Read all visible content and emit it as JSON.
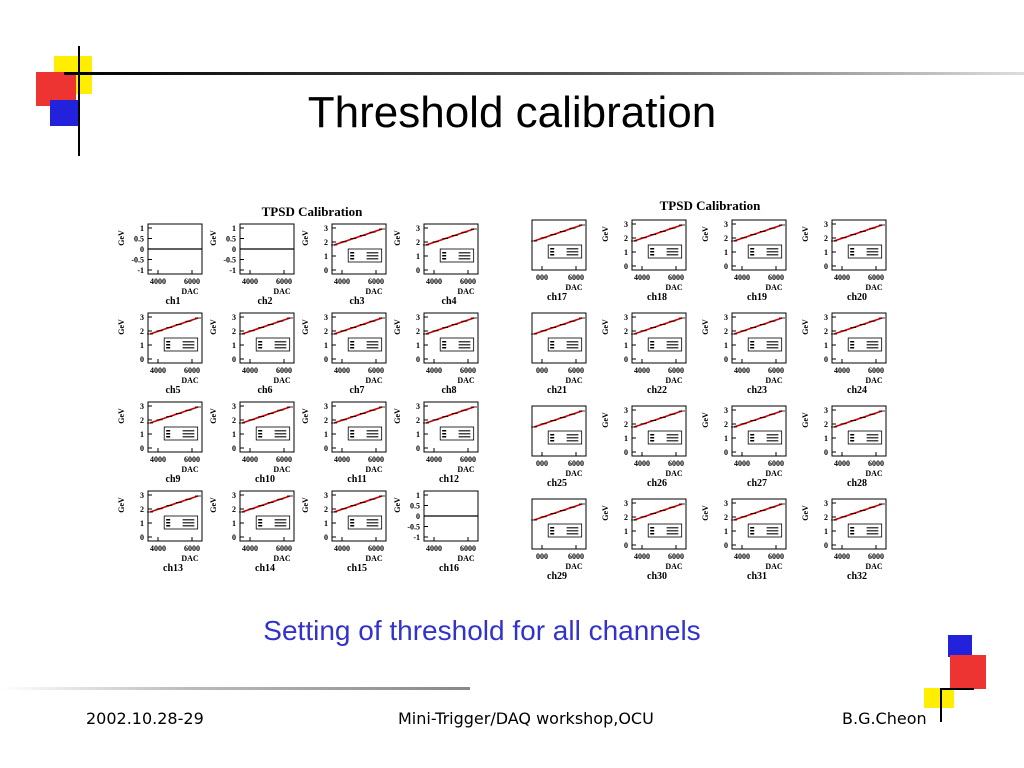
{
  "title": "Threshold calibration",
  "subtitle": "Setting of threshold for all channels",
  "footer": {
    "date": "2002.10.28-29",
    "event": "Mini-Trigger/DAQ workshop,OCU",
    "author": "B.G.Cheon"
  },
  "colors": {
    "line": "#cc0000",
    "subtitle": "#3333cc",
    "deco_red": "#ee3333",
    "deco_yellow": "#ffee00",
    "deco_blue": "#2222dd"
  },
  "chart_data": [
    {
      "type": "line",
      "title": "TPSD Calibration",
      "xlabel": "DAC",
      "ylabel": "GeV",
      "xticks": [
        "4000",
        "6000"
      ],
      "channels": [
        {
          "name": "ch1",
          "flat": true,
          "yticks": [
            "1",
            "0.5",
            "0",
            "-0.5",
            "-1"
          ]
        },
        {
          "name": "ch2",
          "flat": true,
          "yticks": [
            "1",
            "0.5",
            "0",
            "-0.5",
            "-1"
          ]
        },
        {
          "name": "ch3",
          "flat": false,
          "yticks": [
            "3",
            "2",
            "1",
            "0"
          ]
        },
        {
          "name": "ch4",
          "flat": false,
          "yticks": [
            "3",
            "2",
            "1",
            "0"
          ]
        },
        {
          "name": "ch5",
          "flat": false,
          "yticks": [
            "3",
            "2",
            "1",
            "0"
          ]
        },
        {
          "name": "ch6",
          "flat": false,
          "yticks": [
            "3",
            "2",
            "1",
            "0"
          ]
        },
        {
          "name": "ch7",
          "flat": false,
          "yticks": [
            "3",
            "2",
            "1",
            "0"
          ]
        },
        {
          "name": "ch8",
          "flat": false,
          "yticks": [
            "3",
            "2",
            "1",
            "0"
          ]
        },
        {
          "name": "ch9",
          "flat": false,
          "yticks": [
            "3",
            "2",
            "1",
            "0"
          ]
        },
        {
          "name": "ch10",
          "flat": false,
          "yticks": [
            "3",
            "2",
            "1",
            "0"
          ]
        },
        {
          "name": "ch11",
          "flat": false,
          "yticks": [
            "3",
            "2",
            "1",
            "0"
          ]
        },
        {
          "name": "ch12",
          "flat": false,
          "yticks": [
            "3",
            "2",
            "1",
            "0"
          ]
        },
        {
          "name": "ch13",
          "flat": false,
          "yticks": [
            "3",
            "2",
            "1",
            "0"
          ]
        },
        {
          "name": "ch14",
          "flat": false,
          "yticks": [
            "3",
            "2",
            "1",
            "0"
          ]
        },
        {
          "name": "ch15",
          "flat": false,
          "yticks": [
            "3",
            "2",
            "1",
            "0"
          ]
        },
        {
          "name": "ch16",
          "flat": true,
          "yticks": [
            "1",
            "0.5",
            "0",
            "-0.5",
            "-1"
          ]
        }
      ]
    },
    {
      "type": "line",
      "title": "TPSD Calibration",
      "xlabel": "DAC",
      "ylabel": "GeV",
      "xticks": [
        "4000",
        "6000"
      ],
      "channels": [
        {
          "name": "ch17",
          "flat": false,
          "yticks": [],
          "xticks": [
            "000",
            "6000"
          ]
        },
        {
          "name": "ch18",
          "flat": false,
          "yticks": [
            "3",
            "2",
            "1",
            "0"
          ]
        },
        {
          "name": "ch19",
          "flat": false,
          "yticks": [
            "3",
            "2",
            "1",
            "0"
          ]
        },
        {
          "name": "ch20",
          "flat": false,
          "yticks": [
            "3",
            "2",
            "1",
            "0"
          ]
        },
        {
          "name": "ch21",
          "flat": false,
          "yticks": [],
          "xticks": [
            "000",
            "6000"
          ]
        },
        {
          "name": "ch22",
          "flat": false,
          "yticks": [
            "3",
            "2",
            "1",
            "0"
          ]
        },
        {
          "name": "ch23",
          "flat": false,
          "yticks": [
            "3",
            "2",
            "1",
            "0"
          ]
        },
        {
          "name": "ch24",
          "flat": false,
          "yticks": [
            "3",
            "2",
            "1",
            "0"
          ]
        },
        {
          "name": "ch25",
          "flat": false,
          "yticks": [],
          "xticks": [
            "000",
            "6000"
          ]
        },
        {
          "name": "ch26",
          "flat": false,
          "yticks": [
            "3",
            "2",
            "1",
            "0"
          ]
        },
        {
          "name": "ch27",
          "flat": false,
          "yticks": [
            "3",
            "2",
            "1",
            "0"
          ]
        },
        {
          "name": "ch28",
          "flat": false,
          "yticks": [
            "3",
            "2",
            "1",
            "0"
          ]
        },
        {
          "name": "ch29",
          "flat": false,
          "yticks": [],
          "xticks": [
            "000",
            "6000"
          ]
        },
        {
          "name": "ch30",
          "flat": false,
          "yticks": [
            "3",
            "2",
            "1",
            "0"
          ]
        },
        {
          "name": "ch31",
          "flat": false,
          "yticks": [
            "3",
            "2",
            "1",
            "0"
          ]
        },
        {
          "name": "ch32",
          "flat": false,
          "yticks": [
            "3",
            "2",
            "1",
            "0"
          ]
        }
      ]
    }
  ]
}
